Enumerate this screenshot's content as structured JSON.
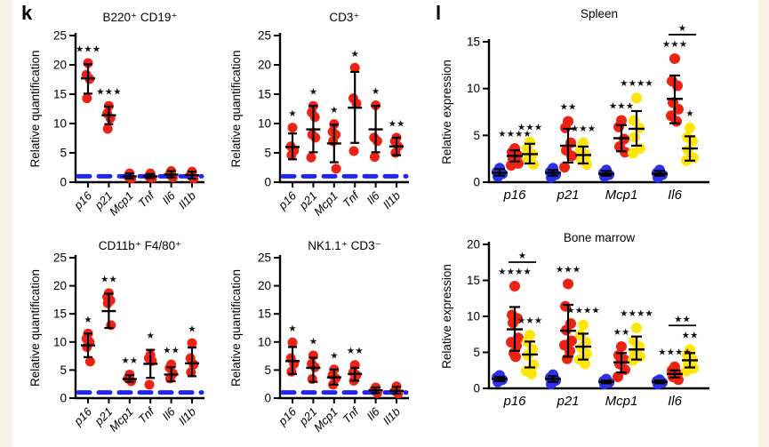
{
  "figure": {
    "panel_k_label": "k",
    "panel_l_label": "l"
  },
  "colors": {
    "red": "#ee2213",
    "blue": "#2a31e8",
    "yellow": "#ffe608",
    "baseline": "#2424f2",
    "axis": "#000000",
    "page_edge": "#faf2e6"
  },
  "chart_data": [
    {
      "id": "b220_cd19",
      "type": "scatter",
      "title": "B220⁺  CD19⁺",
      "ylabel": "Relative quantification",
      "ylim": [
        0,
        25
      ],
      "yticks": [
        0,
        5,
        10,
        15,
        20,
        25
      ],
      "baseline": 1,
      "categories": [
        "p16",
        "p21",
        "Mcp1",
        "Tnf",
        "Il6",
        "Il1b"
      ],
      "series": [
        {
          "name": "red",
          "color": "red",
          "groups": [
            {
              "points": [
                20.3,
                18.3,
                17.6,
                14.3
              ],
              "mean": 17.7,
              "err": [
                15.1,
                20.1
              ],
              "sig": "***"
            },
            {
              "points": [
                13.0,
                11.7,
                10.9,
                9.1
              ],
              "mean": 11.4,
              "err": [
                9.9,
                12.9
              ],
              "sig": "***"
            },
            {
              "points": [
                1.5,
                1.0,
                0.6
              ],
              "mean": 1.0,
              "err": [
                0.6,
                1.5
              ],
              "sig": ""
            },
            {
              "points": [
                1.5,
                1.0,
                0.7
              ],
              "mean": 1.0,
              "err": [
                0.7,
                1.4
              ],
              "sig": ""
            },
            {
              "points": [
                1.9,
                1.3,
                0.8
              ],
              "mean": 1.3,
              "err": [
                0.8,
                1.9
              ],
              "sig": ""
            },
            {
              "points": [
                1.8,
                1.2,
                0.6
              ],
              "mean": 1.2,
              "err": [
                0.6,
                1.8
              ],
              "sig": ""
            }
          ]
        }
      ]
    },
    {
      "id": "cd3",
      "type": "scatter",
      "title": "CD3⁺",
      "ylabel": "Relative quantification",
      "ylim": [
        0,
        25
      ],
      "yticks": [
        0,
        5,
        10,
        15,
        20,
        25
      ],
      "baseline": 1,
      "categories": [
        "p16",
        "p21",
        "Mcp1",
        "Tnf",
        "Il6",
        "Il1b"
      ],
      "series": [
        {
          "name": "red",
          "color": "red",
          "groups": [
            {
              "points": [
                9.3,
                6.1,
                5.4,
                4.6
              ],
              "mean": 6.0,
              "err": [
                3.9,
                8.3
              ],
              "sig": "*"
            },
            {
              "points": [
                13.0,
                11.9,
                11.1,
                8.1,
                7.6,
                4.2
              ],
              "mean": 9.0,
              "err": [
                5.1,
                13.0
              ],
              "sig": "*"
            },
            {
              "points": [
                9.9,
                8.6,
                8.1,
                7.0,
                2.3
              ],
              "mean": 6.6,
              "err": [
                3.4,
                9.8
              ],
              "sig": "*"
            },
            {
              "points": [
                19.5,
                14.3,
                13.4,
                5.3
              ],
              "mean": 12.7,
              "err": [
                6.7,
                18.8
              ],
              "sig": "*"
            },
            {
              "points": [
                13.1,
                7.6,
                7.0,
                4.3
              ],
              "mean": 9.0,
              "err": [
                5.1,
                13.0
              ],
              "sig": "*"
            },
            {
              "points": [
                7.6,
                7.0,
                6.1,
                5.0
              ],
              "mean": 6.1,
              "err": [
                4.6,
                7.6
              ],
              "sig": "**"
            }
          ]
        }
      ]
    },
    {
      "id": "spleen",
      "type": "scatter",
      "title": "Spleen",
      "ylabel": "Relative expression",
      "ylim": [
        0,
        15
      ],
      "yticks": [
        0,
        5,
        10,
        15
      ],
      "baseline": null,
      "categories": [
        "p16",
        "p21",
        "Mcp1",
        "Il6"
      ],
      "series": [
        {
          "name": "blue",
          "color": "blue",
          "groups": [
            {
              "points": [
                1.5,
                1.1,
                0.9,
                0.6
              ],
              "mean": 1.0,
              "err": [
                0.7,
                1.4
              ],
              "sig": ""
            },
            {
              "points": [
                1.5,
                1.1,
                0.8,
                0.5
              ],
              "mean": 1.0,
              "err": [
                0.7,
                1.3
              ],
              "sig": ""
            },
            {
              "points": [
                1.3,
                1.0,
                0.8,
                0.6
              ],
              "mean": 0.9,
              "err": [
                0.7,
                1.2
              ],
              "sig": ""
            },
            {
              "points": [
                1.3,
                1.0,
                0.8,
                0.5
              ],
              "mean": 0.9,
              "err": [
                0.7,
                1.2
              ],
              "sig": ""
            }
          ]
        },
        {
          "name": "red",
          "color": "red",
          "groups": [
            {
              "points": [
                3.6,
                3.2,
                2.9,
                2.5,
                2.0,
                1.8
              ],
              "mean": 2.8,
              "err": [
                2.2,
                3.4
              ],
              "sig": "****"
            },
            {
              "points": [
                6.5,
                5.8,
                4.2,
                3.4,
                2.8,
                1.6
              ],
              "mean": 3.9,
              "err": [
                2.1,
                5.7
              ],
              "sig": "**"
            },
            {
              "points": [
                6.6,
                5.9,
                4.6,
                3.8,
                3.2
              ],
              "mean": 4.7,
              "err": [
                3.3,
                6.1
              ],
              "sig": "***"
            },
            {
              "points": [
                13.2,
                10.8,
                10.3,
                8.5,
                7.8,
                7.1,
                6.5
              ],
              "mean": 8.9,
              "err": [
                6.3,
                11.4
              ],
              "sig": "***"
            }
          ]
        },
        {
          "name": "yellow",
          "color": "yellow",
          "groups": [
            {
              "points": [
                4.3,
                3.6,
                3.0,
                2.4,
                1.9
              ],
              "mean": 3.0,
              "err": [
                2.0,
                4.1
              ],
              "sig": "***"
            },
            {
              "points": [
                4.2,
                3.5,
                2.9,
                2.3,
                1.9
              ],
              "mean": 2.9,
              "err": [
                2.0,
                3.8
              ],
              "sig": "***"
            },
            {
              "points": [
                9.0,
                6.6,
                5.8,
                4.8,
                3.6,
                3.1
              ],
              "mean": 5.7,
              "err": [
                3.9,
                7.6
              ],
              "sig": "****"
            },
            {
              "points": [
                5.8,
                4.8,
                4.4,
                3.4,
                2.6,
                2.3
              ],
              "mean": 3.6,
              "err": [
                2.3,
                4.9
              ],
              "sig": "*"
            }
          ]
        }
      ],
      "brackets": [
        {
          "cat": 3,
          "between": [
            "red",
            "yellow"
          ],
          "label": "*"
        }
      ]
    },
    {
      "id": "cd11b",
      "type": "scatter",
      "title": "CD11b⁺  F4/80⁺",
      "ylabel": "Relative quantification",
      "ylim": [
        0,
        25
      ],
      "yticks": [
        0,
        5,
        10,
        15,
        20,
        25
      ],
      "baseline": 1,
      "categories": [
        "p16",
        "p21",
        "Mcp1",
        "Tnf",
        "Il6",
        "Il1b"
      ],
      "series": [
        {
          "name": "red",
          "color": "red",
          "groups": [
            {
              "points": [
                11.5,
                10.6,
                10.0,
                9.1,
                6.5
              ],
              "mean": 9.4,
              "err": [
                7.3,
                11.5
              ],
              "sig": "*"
            },
            {
              "points": [
                18.7,
                18.0,
                17.4,
                16.9,
                13.0
              ],
              "mean": 15.5,
              "err": [
                12.5,
                18.6
              ],
              "sig": "**"
            },
            {
              "points": [
                4.2,
                3.5,
                3.0
              ],
              "mean": 3.4,
              "err": [
                2.9,
                4.1
              ],
              "sig": "**"
            },
            {
              "points": [
                7.7,
                7.1,
                6.6,
                2.4
              ],
              "mean": 6.1,
              "err": [
                3.6,
                8.6
              ],
              "sig": "*"
            },
            {
              "points": [
                6.0,
                5.4,
                4.4,
                3.5
              ],
              "mean": 4.2,
              "err": [
                3.0,
                5.5
              ],
              "sig": "**"
            },
            {
              "points": [
                9.8,
                7.1,
                6.0,
                4.6
              ],
              "mean": 6.2,
              "err": [
                3.9,
                9.0
              ],
              "sig": "*"
            }
          ]
        }
      ]
    },
    {
      "id": "nk11",
      "type": "scatter",
      "title": "NK1.1⁺  CD3⁻",
      "ylabel": "Relative quantification",
      "ylim": [
        0,
        25
      ],
      "yticks": [
        0,
        5,
        10,
        15,
        20,
        25
      ],
      "baseline": 1,
      "categories": [
        "p16",
        "p21",
        "Mcp1",
        "Tnf",
        "Il6",
        "Il1b"
      ],
      "series": [
        {
          "name": "red",
          "color": "red",
          "groups": [
            {
              "points": [
                9.9,
                7.1,
                6.1,
                4.7
              ],
              "mean": 6.6,
              "err": [
                4.3,
                9.1
              ],
              "sig": "*"
            },
            {
              "points": [
                7.6,
                6.1,
                5.5,
                3.4
              ],
              "mean": 5.4,
              "err": [
                2.9,
                7.2
              ],
              "sig": "*"
            },
            {
              "points": [
                5.1,
                4.1,
                3.5,
                2.4
              ],
              "mean": 3.7,
              "err": [
                2.4,
                5.1
              ],
              "sig": "*"
            },
            {
              "points": [
                5.9,
                4.6,
                4.1,
                3.1
              ],
              "mean": 4.3,
              "err": [
                3.1,
                5.4
              ],
              "sig": "**"
            },
            {
              "points": [
                1.9,
                1.4,
                0.9
              ],
              "mean": 1.4,
              "err": [
                0.9,
                1.9
              ],
              "sig": ""
            },
            {
              "points": [
                2.1,
                1.3,
                0.8
              ],
              "mean": 1.3,
              "err": [
                0.8,
                2.0
              ],
              "sig": ""
            }
          ]
        }
      ]
    },
    {
      "id": "bone_marrow",
      "type": "scatter",
      "title": "Bone marrow",
      "ylabel": "Relative expression",
      "ylim": [
        0,
        20
      ],
      "yticks": [
        0,
        5,
        10,
        15,
        20
      ],
      "baseline": null,
      "categories": [
        "p16",
        "p21",
        "Mcp1",
        "Il6"
      ],
      "series": [
        {
          "name": "blue",
          "color": "blue",
          "groups": [
            {
              "points": [
                1.8,
                1.5,
                1.2,
                0.9
              ],
              "mean": 1.3,
              "err": [
                1.0,
                1.6
              ],
              "sig": ""
            },
            {
              "points": [
                1.9,
                1.5,
                1.1,
                0.6
              ],
              "mean": 1.3,
              "err": [
                0.9,
                1.7
              ],
              "sig": ""
            },
            {
              "points": [
                1.3,
                1.0,
                0.8,
                0.6
              ],
              "mean": 0.9,
              "err": [
                0.7,
                1.1
              ],
              "sig": ""
            },
            {
              "points": [
                1.2,
                1.0,
                0.8,
                0.6
              ],
              "mean": 0.9,
              "err": [
                0.7,
                1.1
              ],
              "sig": ""
            }
          ]
        },
        {
          "name": "red",
          "color": "red",
          "groups": [
            {
              "points": [
                14.2,
                10.2,
                9.7,
                9.1,
                7.0,
                6.4,
                5.9,
                4.9,
                4.4
              ],
              "mean": 8.2,
              "err": [
                5.2,
                11.3
              ],
              "sig": "****"
            },
            {
              "points": [
                14.5,
                11.4,
                9.0,
                8.1,
                6.6,
                6.0,
                5.2,
                4.1
              ],
              "mean": 8.0,
              "err": [
                4.4,
                11.6
              ],
              "sig": "***"
            },
            {
              "points": [
                5.8,
                4.6,
                4.0,
                3.4,
                2.6,
                1.6
              ],
              "mean": 3.6,
              "err": [
                2.2,
                4.9
              ],
              "sig": "**"
            },
            {
              "points": [
                3.0,
                2.5,
                2.0,
                1.6,
                1.2
              ],
              "mean": 2.0,
              "err": [
                1.5,
                2.5
              ],
              "sig": "****"
            }
          ]
        },
        {
          "name": "yellow",
          "color": "yellow",
          "groups": [
            {
              "points": [
                7.4,
                6.5,
                5.4,
                4.6,
                3.3,
                2.4,
                2.0
              ],
              "mean": 4.7,
              "err": [
                2.9,
                6.5
              ],
              "sig": "***"
            },
            {
              "points": [
                8.8,
                7.4,
                6.4,
                5.6,
                4.8,
                4.0,
                3.4
              ],
              "mean": 5.8,
              "err": [
                4.0,
                7.6
              ],
              "sig": "****"
            },
            {
              "points": [
                8.4,
                6.6,
                5.8,
                5.0,
                4.4,
                3.9
              ],
              "mean": 5.4,
              "err": [
                4.0,
                7.2
              ],
              "sig": "****"
            },
            {
              "points": [
                5.4,
                4.6,
                4.0,
                3.4,
                2.8,
                2.4
              ],
              "mean": 3.9,
              "err": [
                2.9,
                4.9
              ],
              "sig": "**"
            }
          ]
        }
      ],
      "brackets": [
        {
          "cat": 0,
          "between": [
            "red",
            "yellow"
          ],
          "label": "*"
        },
        {
          "cat": 3,
          "between": [
            "red",
            "yellow"
          ],
          "label": "**"
        }
      ]
    }
  ]
}
